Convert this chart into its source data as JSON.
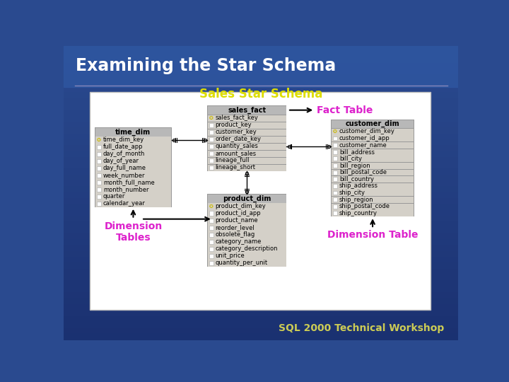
{
  "title": "Examining the Star Schema",
  "subtitle": "Sales Star Schema",
  "bg_top": "#2a4a8f",
  "bg_bottom": "#1a3070",
  "title_color": "#ffffff",
  "subtitle_color": "#dddd00",
  "footer": "SQL 2000 Technical Workshop",
  "footer_color": "#cccc55",
  "label_color": "#dd22cc",
  "fact_label": "Fact Table",
  "dim_tables_label": "Dimension\nTables",
  "dim_table_label": "Dimension Table",
  "header_bg": "#b0b0b0",
  "row_bg": "#d8d5cf",
  "row_bg2": "#e8e5df",
  "border_color": "#999999",
  "white_bg": "#f0f0f0",
  "sales_fact": {
    "title": "sales_fact",
    "key_field": "sales_fact_key",
    "fields": [
      "product_key",
      "customer_key",
      "order_date_key",
      "quantity_sales",
      "amount_sales",
      "lineage_full",
      "lineage_short"
    ]
  },
  "time_dim": {
    "title": "time_dim",
    "key_field": "time_dim_key",
    "fields": [
      "full_date_app",
      "day_of_month",
      "day_of_year",
      "day_full_name",
      "week_number",
      "month_full_name",
      "month_number",
      "quarter",
      "calendar_year"
    ]
  },
  "customer_dim": {
    "title": "customer_dim",
    "key_field": "customer_dim_key",
    "fields": [
      "customer_id_app",
      "customer_name",
      "bill_address",
      "bill_city",
      "bill_region",
      "bill_postal_code",
      "bill_country",
      "ship_address",
      "ship_city",
      "ship_region",
      "ship_postal_code",
      "ship_country"
    ]
  },
  "product_dim": {
    "title": "product_dim",
    "key_field": "product_dim_key",
    "fields": [
      "product_id_app",
      "product_name",
      "reorder_level",
      "obsolete_flag",
      "category_name",
      "category_description",
      "unit_price",
      "quantity_per_unit"
    ]
  }
}
